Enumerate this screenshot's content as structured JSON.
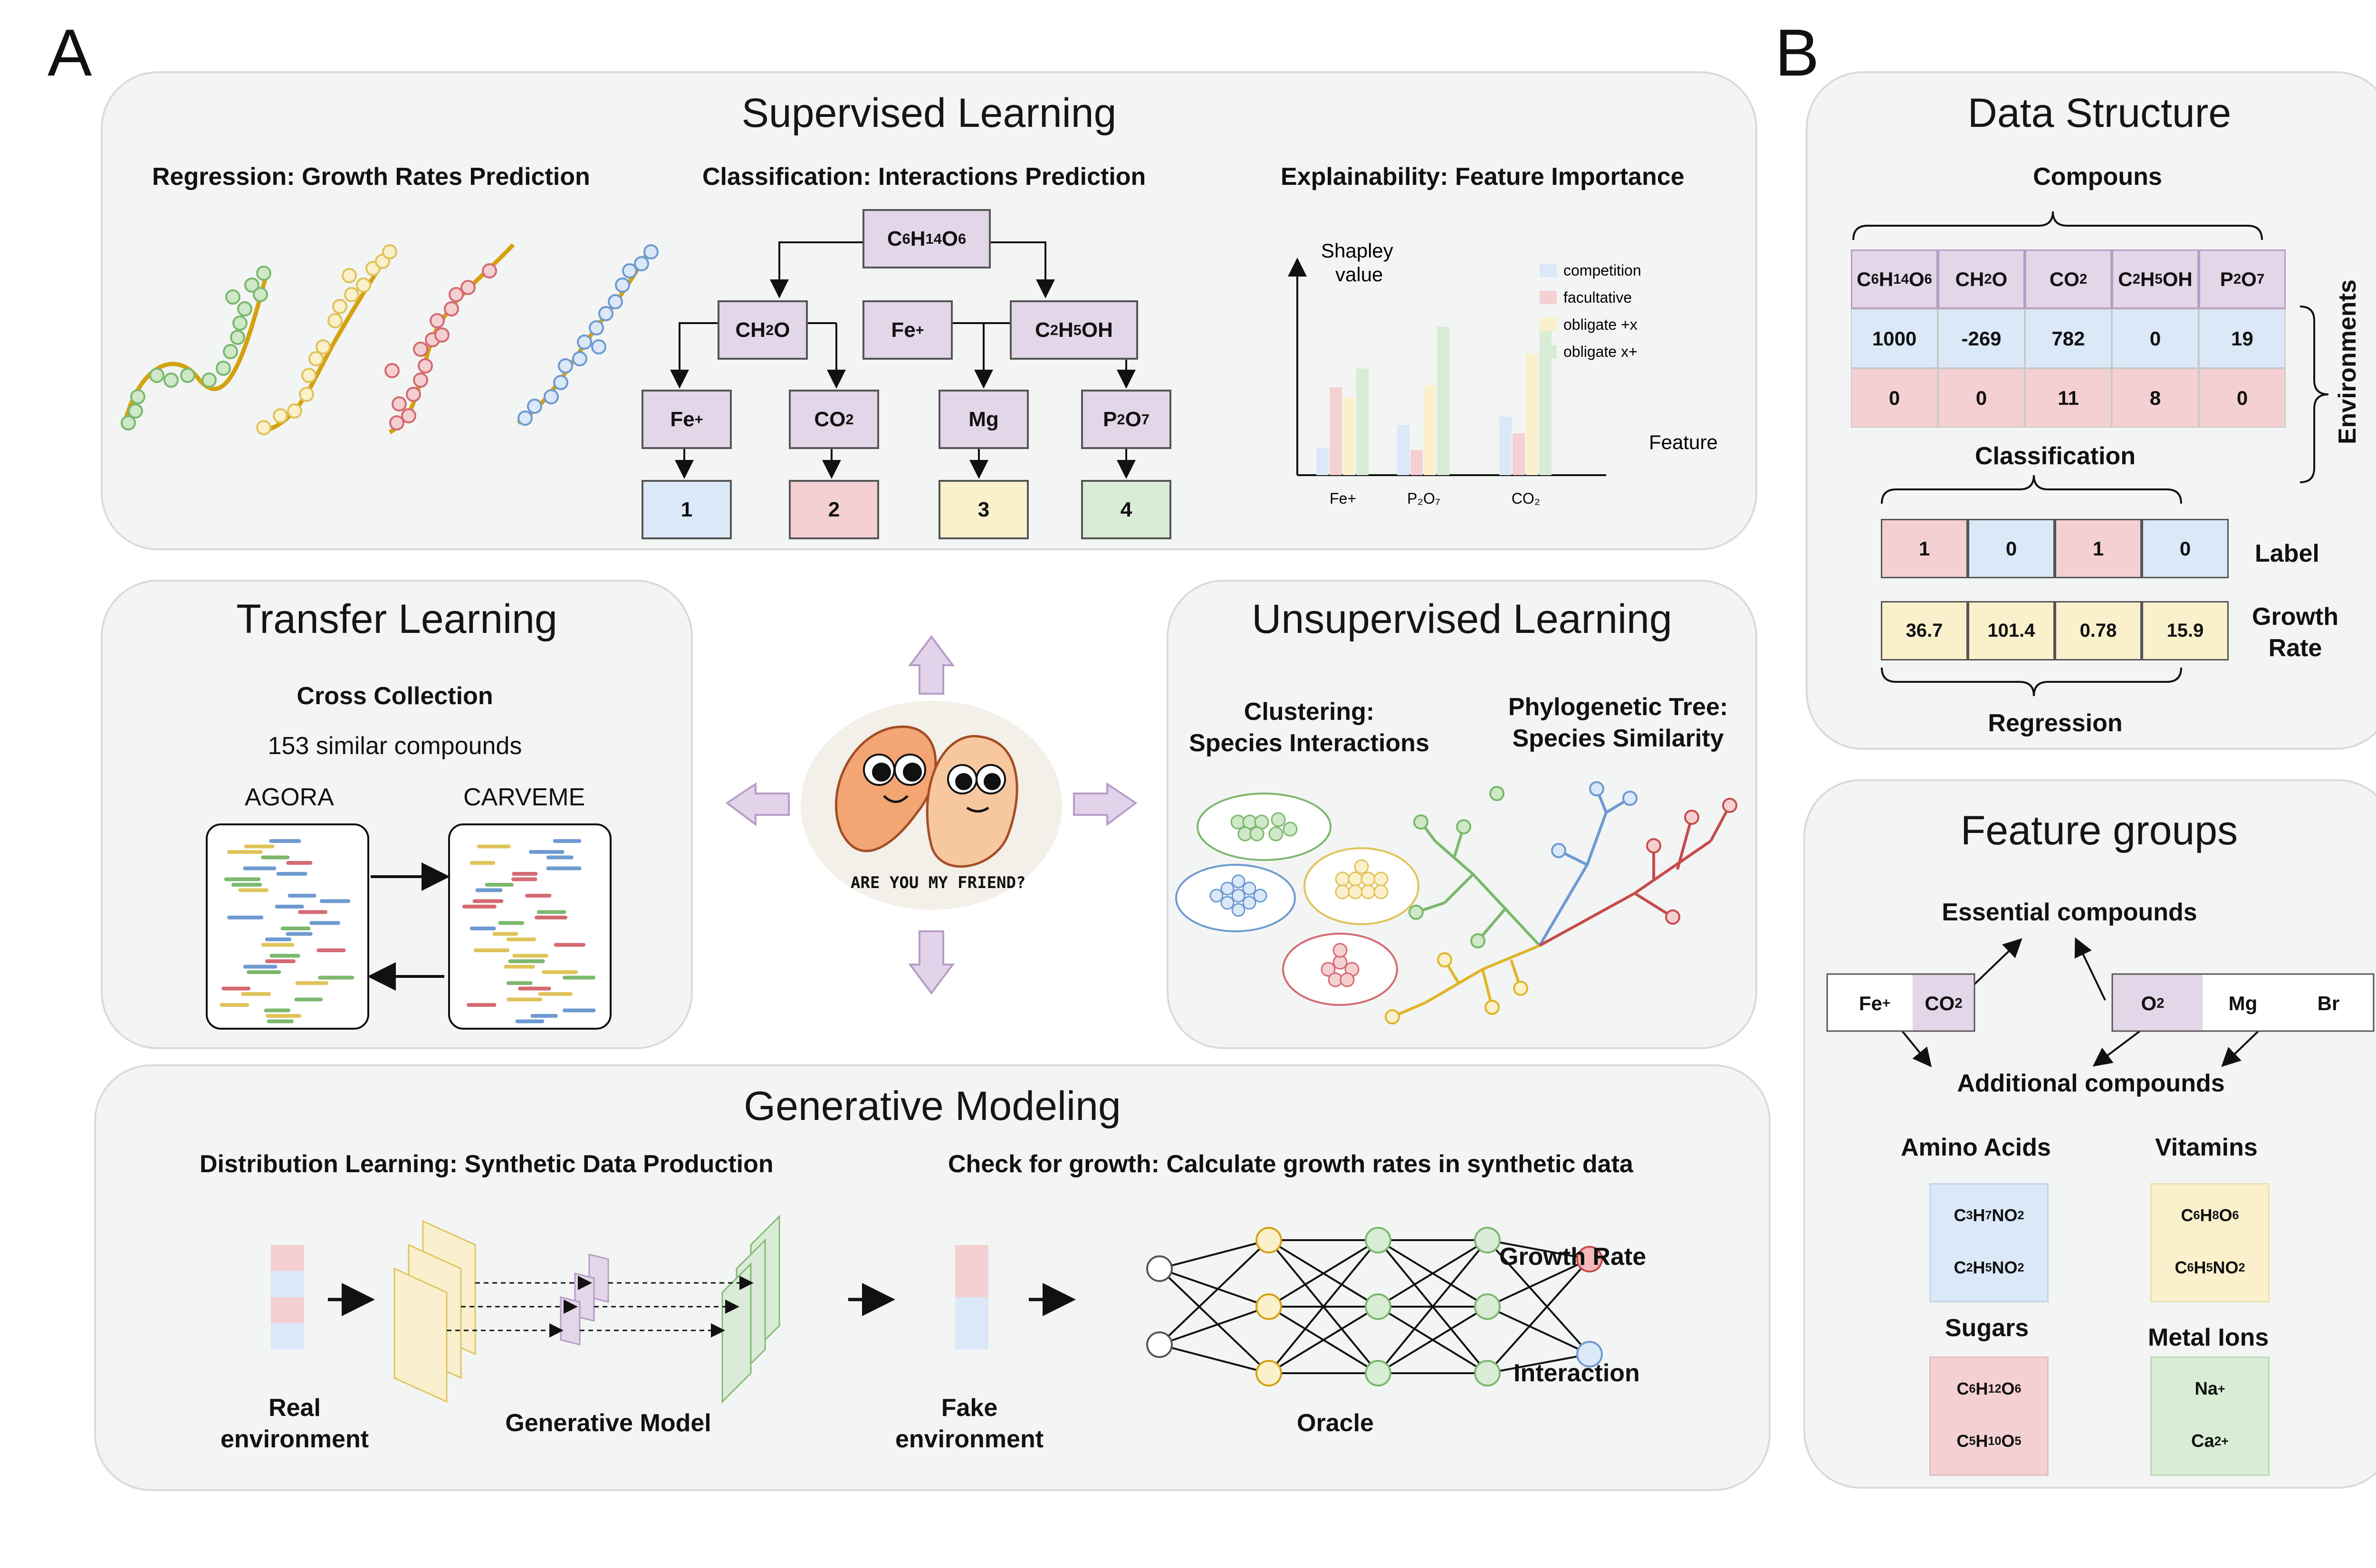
{
  "labels": {
    "a": "A",
    "b": "B"
  },
  "supervised": {
    "title": "Supervised Learning",
    "regression_title": "Regression: Growth Rates Prediction",
    "classification_title": "Classification: Interactions Prediction",
    "explainability_title": "Explainability: Feature Importance",
    "tree": {
      "root": "C6H14O6",
      "level1": [
        "CH2O",
        "Fe+",
        "C2H5OH"
      ],
      "level2": [
        "Fe+",
        "CO2",
        "Mg",
        "P2O7"
      ],
      "leaves": [
        "1",
        "2",
        "3",
        "4"
      ]
    },
    "chart_data": {
      "type": "bar",
      "ylabel": "Shapley value",
      "xlabel": "Feature",
      "categories": [
        "Fe+",
        "P2O7",
        "CO2"
      ],
      "series": [
        {
          "name": "competition",
          "color": "#dbe8f8",
          "values": [
            0.13,
            0.24,
            0.28
          ]
        },
        {
          "name": "facultative",
          "color": "#f4d0d2",
          "values": [
            0.42,
            0.12,
            0.2
          ]
        },
        {
          "name": "obligate +x",
          "color": "#fbf0cc",
          "values": [
            0.37,
            0.43,
            0.58
          ]
        },
        {
          "name": "obligate x+",
          "color": "#d9ecd6",
          "values": [
            0.51,
            0.71,
            0.71
          ]
        }
      ]
    }
  },
  "transfer": {
    "title": "Transfer Learning",
    "subtitle": "Cross Collection",
    "note": "153 similar compounds",
    "left_label": "AGORA",
    "right_label": "CARVEME"
  },
  "unsupervised": {
    "title": "Unsupervised Learning",
    "clustering_title": "Clustering:\nSpecies Interactions",
    "tree_title": "Phylogenetic Tree:\nSpecies Similarity"
  },
  "center_image": {
    "caption": "ARE YOU MY FRIEND?"
  },
  "generative": {
    "title": "Generative Modeling",
    "left_title": "Distribution Learning: Synthetic Data Production",
    "right_title": "Check for growth: Calculate growth rates in synthetic data",
    "real_label": "Real\nenvironment",
    "model_label": "Generative Model",
    "fake_label": "Fake\nenvironment",
    "oracle_label": "Oracle",
    "out1": "Growth Rate",
    "out2": "Interaction"
  },
  "data_structure": {
    "title": "Data Structure",
    "compounds_label": "Compouns",
    "environments_label": "Environments",
    "headers": [
      "C6H14O6",
      "CH2O",
      "CO2",
      "C2H5OH",
      "P2O7"
    ],
    "rows": [
      [
        "1000",
        "-269",
        "782",
        "0",
        "19"
      ],
      [
        "0",
        "0",
        "11",
        "8",
        "0"
      ]
    ],
    "classification_label": "Classification",
    "label_values": [
      "1",
      "0",
      "1",
      "0"
    ],
    "label_name": "Label",
    "growth_values": [
      "36.7",
      "101.4",
      "0.78",
      "15.9"
    ],
    "growth_name": "Growth\nRate",
    "regression_label": "Regression"
  },
  "feature_groups": {
    "title": "Feature groups",
    "essential": "Essential compounds",
    "additional": "Additional compounds",
    "row": [
      "Fe+",
      "CO2",
      "O2",
      "Mg",
      "Br"
    ],
    "amino_title": "Amino Acids",
    "amino": [
      "C3H7NO2",
      "C2H5NO2"
    ],
    "vitamins_title": "Vitamins",
    "vitamins": [
      "C6H8O6",
      "C6H5NO2"
    ],
    "sugars_title": "Sugars",
    "sugars": [
      "C6H12O6",
      "C5H10O5"
    ],
    "metals_title": "Metal Ions",
    "metals": [
      "Na+",
      "Ca2+"
    ]
  }
}
